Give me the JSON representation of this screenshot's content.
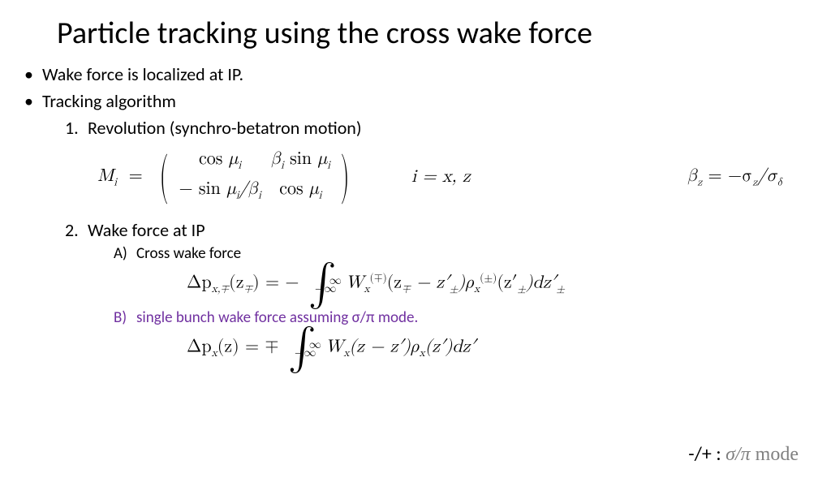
{
  "slide": {
    "title": "Particle tracking using the cross wake force",
    "bullet1": "Wake force is localized at IP.",
    "bullet2": "Tracking algorithm",
    "step1_num": "1.",
    "step1": "Revolution (synchro-betatron motion)",
    "step2_num": "2.",
    "step2": "Wake force at IP",
    "stepA_let": "A)",
    "stepA": "Cross wake force",
    "stepB_let": "B)",
    "stepB": "single bunch wake force assuming σ/π mode."
  },
  "eq": {
    "matrix_lhs": "M",
    "matrix_sub": "i",
    "m11a": "cos ",
    "m11b": "μ",
    "m11s": "i",
    "m12a": "β",
    "m12s": "i",
    "m12b": " sin ",
    "m12c": "μ",
    "m12cs": "i",
    "m21a": "− sin ",
    "m21b": "μ",
    "m21s": "i",
    "m21c": "/β",
    "m21cs": "i",
    "m22a": "cos ",
    "m22b": "μ",
    "m22s": "i",
    "iindex": "i = x, z",
    "betaz1": "β",
    "betazs": "z",
    "betaz2": "  =  −σ",
    "sigzs": "z",
    "betaz3": "/σ",
    "sigds": "δ",
    "crossA1": "Δp",
    "crossA1s": "x,∓",
    "crossA2": "(z",
    "crossA2s": "∓",
    "crossA3": ") = −",
    "crossB1": " W",
    "crossB1s": "x",
    "crossB1sup": "(∓)",
    "crossB2": "(z",
    "crossB2s": "∓",
    "crossB3": " − z′",
    "crossB3s": "±",
    "crossB4": ")ρ",
    "crossB4s": "x",
    "crossB4sup": "(±)",
    "crossB5": "(z′",
    "crossB5s": "±",
    "crossB6": ")dz′",
    "crossB6s": "±",
    "sbA1": "Δp",
    "sbA1s": "x",
    "sbA2": "(z) = ∓",
    "sbB1": " W",
    "sbB1s": "x",
    "sbB2": "(z − z′)ρ",
    "sbB2s": "x",
    "sbB3": "(z′)dz′",
    "int_ub": "∞",
    "int_lb": "−∞",
    "mode_pre": "-/+ : ",
    "mode_sym": "σ/π",
    "mode_txt": " mode"
  },
  "style": {
    "bg": "#ffffff",
    "text": "#000000",
    "purple": "#7030a0",
    "gray": "#808080",
    "title_fontsize": 38,
    "body_fontsize": 22,
    "sub_fontsize": 19,
    "eq_fontsize": 22,
    "eq_font": "Cambria Math",
    "body_font": "Calibri"
  }
}
